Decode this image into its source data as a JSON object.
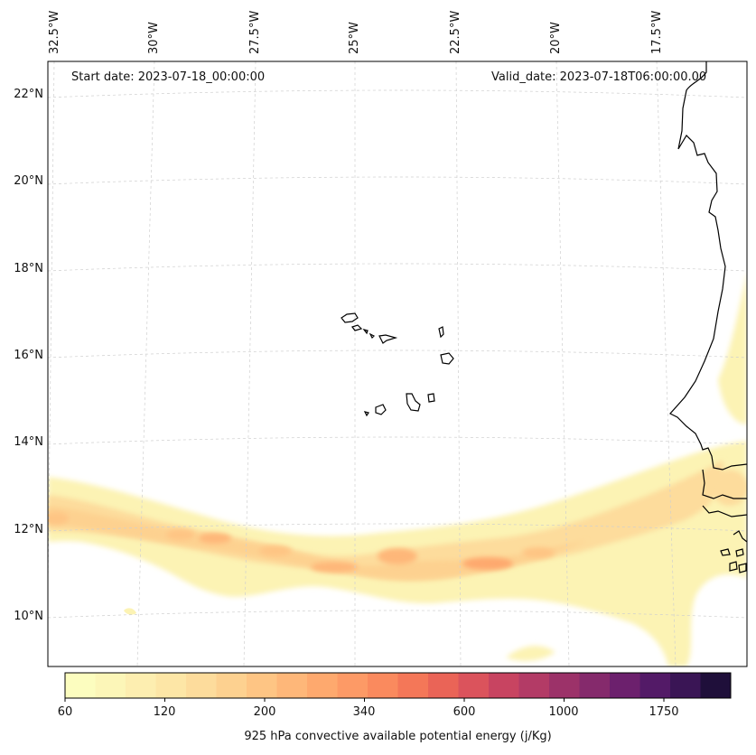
{
  "map": {
    "start_date": "Start date: 2023-07-18_00:00:00",
    "valid_date": "Valid_date: 2023-07-18T06:00:00.00",
    "lon_ticks": [
      "32.5°W",
      "30°W",
      "27.5°W",
      "25°W",
      "22.5°W",
      "20°W",
      "17.5°W"
    ],
    "lat_ticks": [
      "22°N",
      "20°N",
      "18°N",
      "16°N",
      "14°N",
      "12°N",
      "10°N"
    ],
    "gridlines": true,
    "coastline_color": "#000000",
    "features": [
      "west-africa-coastline",
      "cape-verde-islands",
      "cape-convective-energy-band"
    ]
  },
  "colorbar": {
    "label": "925 hPa convective available potential energy (j/Kg)",
    "tick_labels": [
      "60",
      "120",
      "200",
      "340",
      "600",
      "1000",
      "1750"
    ],
    "colors": [
      "#fcfdbf",
      "#fcf6b8",
      "#fdeeb0",
      "#fde6a6",
      "#fddc9c",
      "#fdd190",
      "#fec584",
      "#feb779",
      "#fea96e",
      "#fd9a66",
      "#fa8a5e",
      "#f47758",
      "#ea6457",
      "#db535c",
      "#c84461",
      "#b33b66",
      "#9c3269",
      "#852a6c",
      "#6c206d",
      "#531a67",
      "#3a1555",
      "#1f0f3a"
    ]
  }
}
